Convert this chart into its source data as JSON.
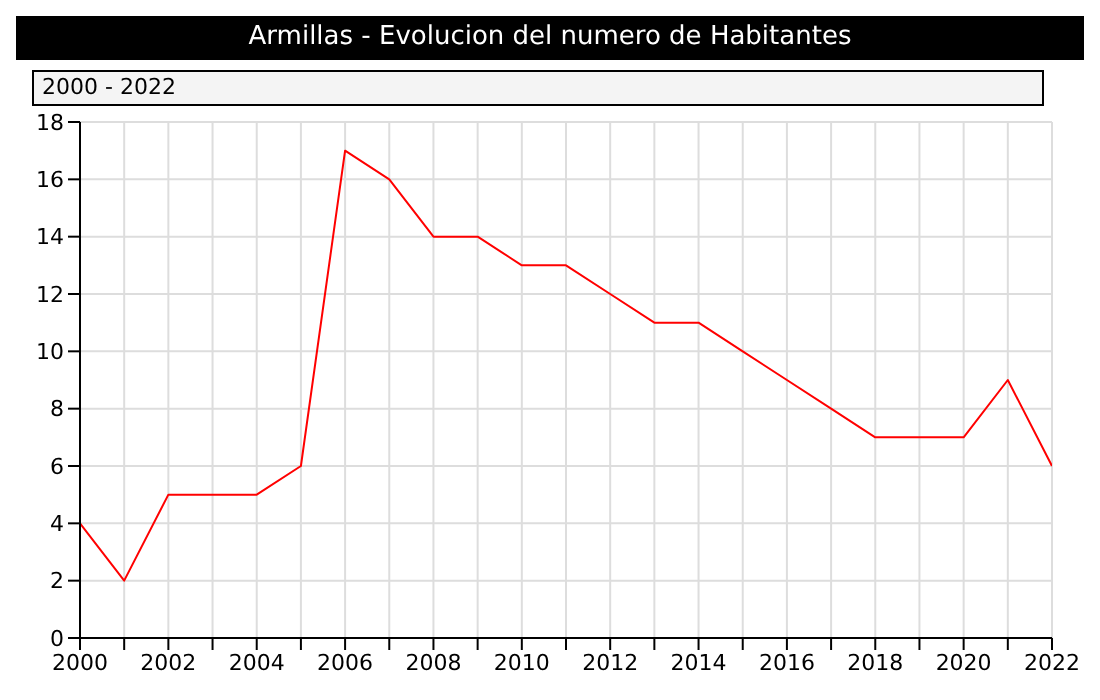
{
  "chart_data": {
    "type": "line",
    "title": "Armillas - Evolucion del numero de Habitantes",
    "subtitle": "2000 - 2022",
    "x": [
      2000,
      2001,
      2002,
      2003,
      2004,
      2005,
      2006,
      2007,
      2008,
      2009,
      2010,
      2011,
      2012,
      2013,
      2014,
      2015,
      2016,
      2017,
      2018,
      2019,
      2020,
      2021,
      2022
    ],
    "series": [
      {
        "color": "#ff0000",
        "values": [
          4,
          2,
          5,
          5,
          5,
          6,
          17,
          16,
          14,
          14,
          13,
          13,
          12,
          11,
          11,
          10,
          9,
          8,
          7,
          7,
          7,
          9,
          6
        ]
      }
    ],
    "xlim": [
      2000,
      2022
    ],
    "xticks": [
      2000,
      {
        "value": 2001,
        "label": null
      },
      2002,
      {
        "value": 2003,
        "label": null
      },
      2004,
      {
        "value": 2005,
        "label": null
      },
      2006,
      {
        "value": 2007,
        "label": null
      },
      2008,
      {
        "value": 2009,
        "label": null
      },
      2010,
      {
        "value": 2011,
        "label": null
      },
      2012,
      {
        "value": 2013,
        "label": null
      },
      2014,
      {
        "value": 2015,
        "label": null
      },
      2016,
      {
        "value": 2017,
        "label": null
      },
      2018,
      {
        "value": 2019,
        "label": null
      },
      2020,
      {
        "value": 2021,
        "label": null
      },
      2022
    ],
    "ylim": [
      0,
      18
    ],
    "yticks": [
      0,
      2,
      4,
      6,
      8,
      10,
      12,
      14,
      16,
      18
    ],
    "grid": true,
    "marker": "none",
    "line_style": "solid"
  }
}
